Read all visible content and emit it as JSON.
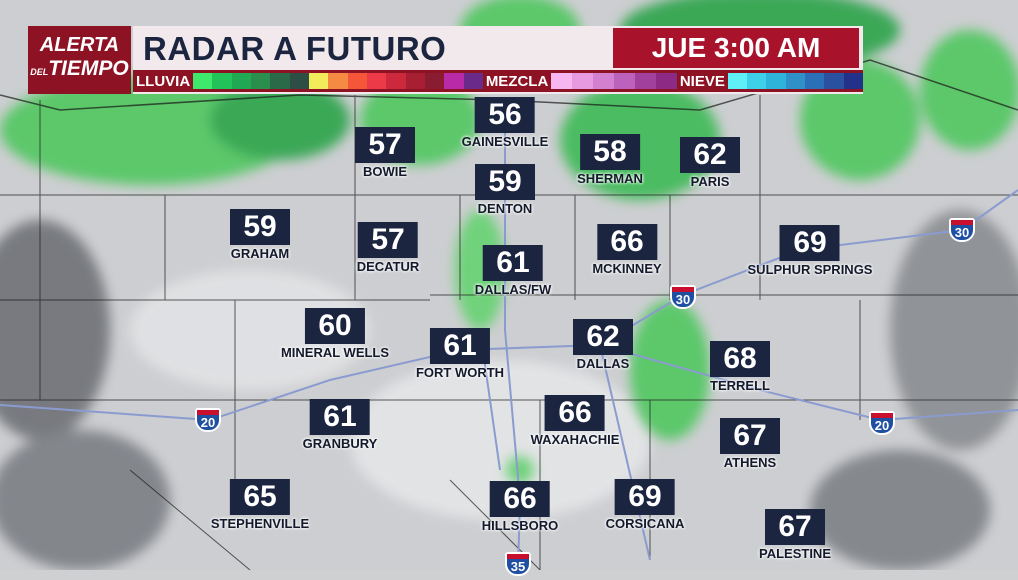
{
  "header": {
    "logo": {
      "line1": "ALERTA",
      "line2_small": "DEL",
      "line2": "TIEMPO"
    },
    "title": "RADAR A FUTURO",
    "time": "JUE 3:00 AM",
    "legend": {
      "rain_label": "LLUVIA",
      "mix_label": "MEZCLA",
      "snow_label": "NIEVE",
      "rain_colors": [
        "#3ee86a",
        "#22c45a",
        "#20a852",
        "#2a8e4c",
        "#2b6a48",
        "#2d4e44",
        "#f2ec5a",
        "#f58a42",
        "#f5563a",
        "#ec3a48",
        "#cc2a3c",
        "#a81f34",
        "#8a1c32",
        "#b82aa8",
        "#6a2a8a"
      ],
      "mix_colors": [
        "#f7b6f0",
        "#e79ae0",
        "#d480d0",
        "#bd62bc",
        "#a2409e",
        "#8c2a86"
      ],
      "snow_colors": [
        "#5ef0f6",
        "#3ed0e8",
        "#2eb4da",
        "#3090c8",
        "#2a70b8",
        "#2a50a0",
        "#22328a"
      ]
    }
  },
  "cities": [
    {
      "name": "GAINESVILLE",
      "temp": "56"
    },
    {
      "name": "BOWIE",
      "temp": "57"
    },
    {
      "name": "SHERMAN",
      "temp": "58"
    },
    {
      "name": "PARIS",
      "temp": "62"
    },
    {
      "name": "DENTON",
      "temp": "59"
    },
    {
      "name": "GRAHAM",
      "temp": "59"
    },
    {
      "name": "DECATUR",
      "temp": "57"
    },
    {
      "name": "MCKINNEY",
      "temp": "66"
    },
    {
      "name": "SULPHUR SPRINGS",
      "temp": "69"
    },
    {
      "name": "DALLAS/FW",
      "temp": "61"
    },
    {
      "name": "MINERAL WELLS",
      "temp": "60"
    },
    {
      "name": "FORT WORTH",
      "temp": "61"
    },
    {
      "name": "DALLAS",
      "temp": "62"
    },
    {
      "name": "TERRELL",
      "temp": "68"
    },
    {
      "name": "WAXAHACHIE",
      "temp": "66"
    },
    {
      "name": "GRANBURY",
      "temp": "61"
    },
    {
      "name": "ATHENS",
      "temp": "67"
    },
    {
      "name": "STEPHENVILLE",
      "temp": "65"
    },
    {
      "name": "HILLSBORO",
      "temp": "66"
    },
    {
      "name": "CORSICANA",
      "temp": "69"
    },
    {
      "name": "PALESTINE",
      "temp": "67"
    }
  ],
  "highways": [
    {
      "label": "30"
    },
    {
      "label": "30"
    },
    {
      "label": "20"
    },
    {
      "label": "20"
    },
    {
      "label": "35"
    }
  ]
}
